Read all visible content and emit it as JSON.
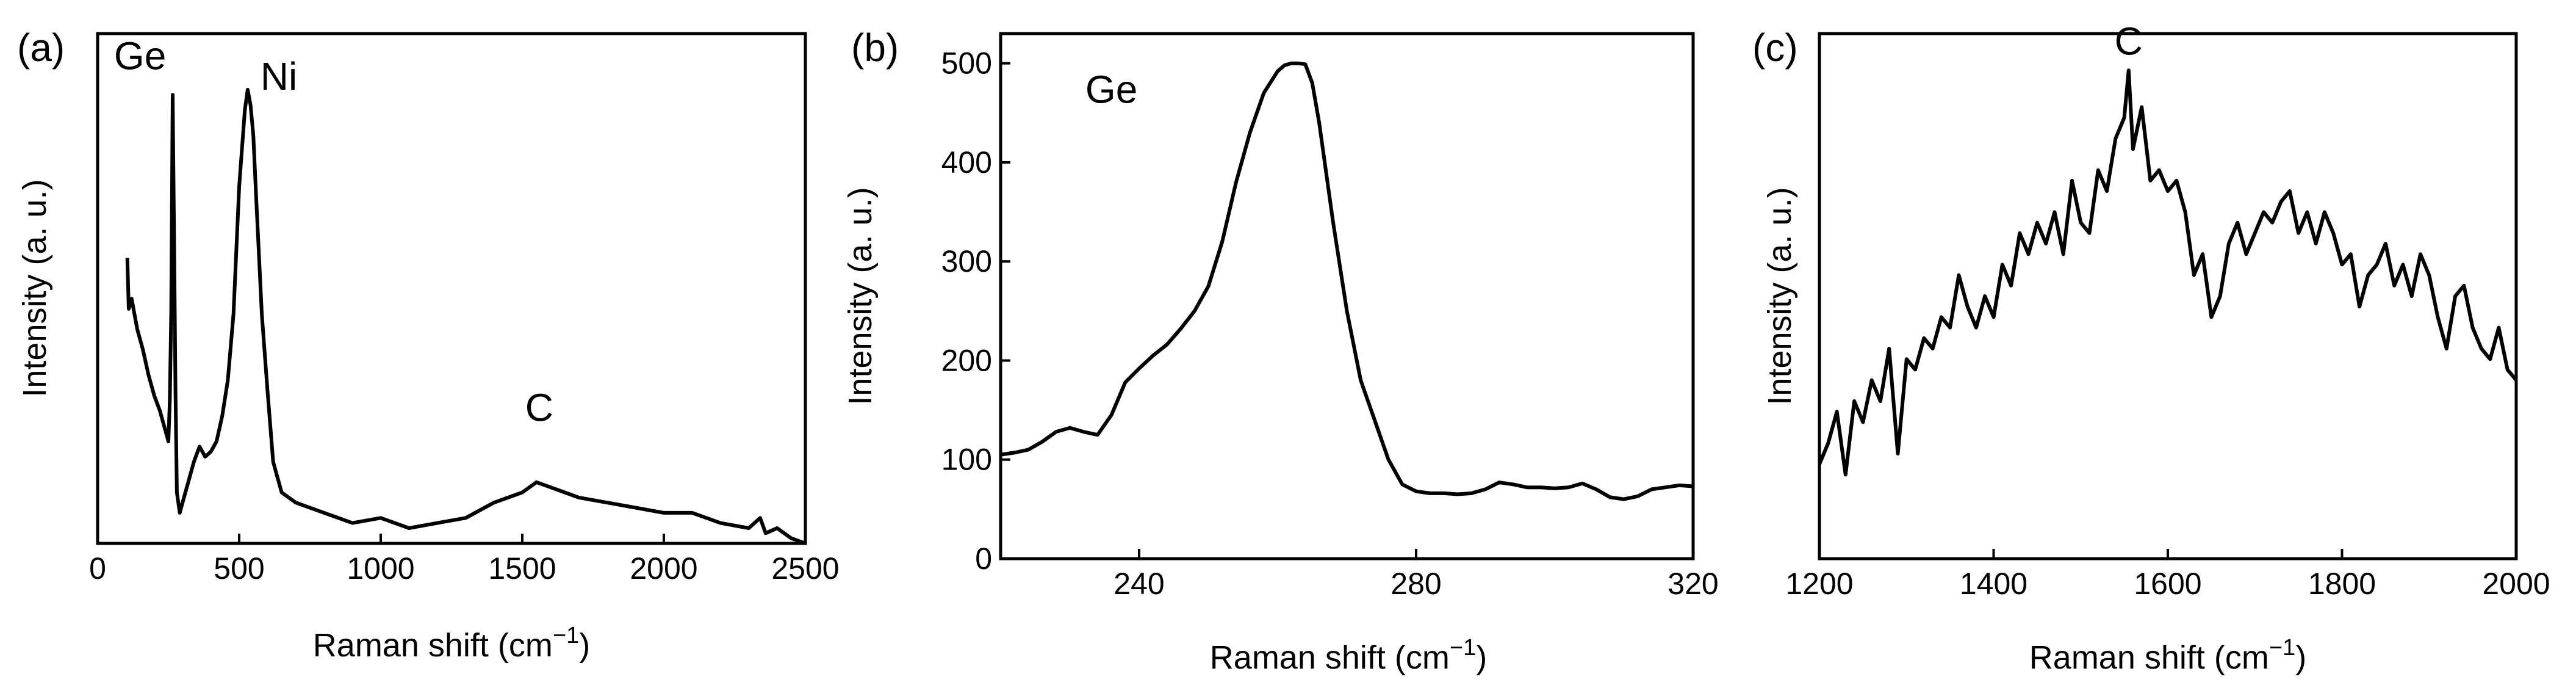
{
  "chart_data": [
    {
      "type": "line",
      "panel_label": "(a)",
      "xlabel": "Raman shift (cm",
      "xlabel_sup": "−1",
      "xlabel_tail": ")",
      "ylabel": "Intensity (a. u.)",
      "xlim": [
        0,
        2500
      ],
      "ylim": [
        0,
        100
      ],
      "x_ticks": [
        "0",
        "500",
        "1000",
        "1500",
        "2000",
        "2500"
      ],
      "y_ticks": [],
      "annotations": [
        {
          "text": "Ge",
          "x": 150,
          "y": 93
        },
        {
          "text": "Ni",
          "x": 640,
          "y": 89
        },
        {
          "text": "C",
          "x": 1560,
          "y": 24
        }
      ],
      "series": [
        {
          "x": [
            105,
            110,
            120,
            140,
            160,
            180,
            200,
            220,
            240,
            250,
            255,
            260,
            265,
            270,
            275,
            280,
            290,
            300,
            320,
            340,
            360,
            380,
            400,
            420,
            440,
            460,
            480,
            500,
            520,
            530,
            540,
            550,
            560,
            580,
            600,
            620,
            650,
            700,
            800,
            900,
            1000,
            1100,
            1200,
            1300,
            1400,
            1500,
            1550,
            1600,
            1650,
            1700,
            1800,
            1900,
            2000,
            2100,
            2200,
            2300,
            2340,
            2360,
            2400,
            2450,
            2500
          ],
          "y": [
            56,
            46,
            48,
            42,
            38,
            33,
            29,
            26,
            22,
            20,
            28,
            45,
            88,
            60,
            30,
            10,
            6,
            8,
            12,
            16,
            19,
            17,
            18,
            20,
            25,
            32,
            45,
            70,
            85,
            89,
            86,
            80,
            68,
            45,
            30,
            16,
            10,
            8,
            6,
            4,
            5,
            3,
            4,
            5,
            8,
            10,
            12,
            11,
            10,
            9,
            8,
            7,
            6,
            6,
            4,
            3,
            5,
            2,
            3,
            1,
            0
          ]
        }
      ]
    },
    {
      "type": "line",
      "panel_label": "(b)",
      "xlabel": "Raman shift (cm",
      "xlabel_sup": "−1",
      "xlabel_tail": ")",
      "ylabel": "Intensity (a. u.)",
      "xlim": [
        220,
        320
      ],
      "ylim": [
        0,
        530
      ],
      "x_ticks": [
        "240",
        "280",
        "320"
      ],
      "y_ticks": [
        "0",
        "100",
        "200",
        "300",
        "400",
        "500"
      ],
      "annotations": [
        {
          "text": "Ge",
          "x": 236,
          "y": 460
        }
      ],
      "series": [
        {
          "x": [
            220,
            222,
            224,
            226,
            228,
            230,
            232,
            234,
            236,
            238,
            240,
            242,
            244,
            246,
            248,
            250,
            252,
            254,
            256,
            258,
            260,
            261,
            262,
            263,
            264,
            265,
            266,
            268,
            270,
            272,
            274,
            276,
            278,
            280,
            282,
            284,
            286,
            288,
            290,
            292,
            294,
            296,
            298,
            300,
            302,
            304,
            306,
            308,
            310,
            312,
            314,
            316,
            318,
            320
          ],
          "y": [
            105,
            107,
            110,
            118,
            128,
            132,
            128,
            125,
            145,
            178,
            192,
            205,
            216,
            232,
            250,
            275,
            320,
            380,
            430,
            470,
            492,
            498,
            500,
            500,
            499,
            480,
            440,
            340,
            250,
            180,
            140,
            100,
            75,
            68,
            66,
            66,
            65,
            66,
            70,
            77,
            75,
            72,
            72,
            71,
            72,
            76,
            70,
            62,
            60,
            63,
            70,
            72,
            74,
            73
          ]
        }
      ]
    },
    {
      "type": "line",
      "panel_label": "(c)",
      "xlabel": "Raman shift (cm",
      "xlabel_sup": "−1",
      "xlabel_tail": ")",
      "ylabel": "Intensity (a. u.)",
      "xlim": [
        1200,
        2000
      ],
      "ylim": [
        0,
        100
      ],
      "x_ticks": [
        "1200",
        "1400",
        "1600",
        "1800",
        "2000"
      ],
      "y_ticks": [],
      "annotations": [
        {
          "text": "C",
          "x": 1555,
          "y": 96
        }
      ],
      "series": [
        {
          "x": [
            1200,
            1210,
            1220,
            1230,
            1240,
            1250,
            1260,
            1270,
            1280,
            1290,
            1300,
            1310,
            1320,
            1330,
            1340,
            1350,
            1360,
            1370,
            1380,
            1390,
            1400,
            1410,
            1420,
            1430,
            1440,
            1450,
            1460,
            1470,
            1480,
            1490,
            1500,
            1510,
            1520,
            1530,
            1540,
            1550,
            1555,
            1560,
            1570,
            1580,
            1590,
            1600,
            1610,
            1620,
            1630,
            1640,
            1650,
            1660,
            1670,
            1680,
            1690,
            1700,
            1710,
            1720,
            1730,
            1740,
            1750,
            1760,
            1770,
            1780,
            1790,
            1800,
            1810,
            1820,
            1830,
            1840,
            1850,
            1860,
            1870,
            1880,
            1890,
            1900,
            1910,
            1920,
            1930,
            1940,
            1950,
            1960,
            1970,
            1980,
            1990,
            2000
          ],
          "y": [
            18,
            22,
            28,
            16,
            30,
            26,
            34,
            30,
            40,
            20,
            38,
            36,
            42,
            40,
            46,
            44,
            54,
            48,
            44,
            50,
            46,
            56,
            52,
            62,
            58,
            64,
            60,
            66,
            58,
            72,
            64,
            62,
            74,
            70,
            80,
            84,
            93,
            78,
            86,
            72,
            74,
            70,
            72,
            66,
            54,
            58,
            46,
            50,
            60,
            64,
            58,
            62,
            66,
            64,
            68,
            70,
            62,
            66,
            60,
            66,
            62,
            56,
            58,
            48,
            54,
            56,
            60,
            52,
            56,
            50,
            58,
            54,
            46,
            40,
            50,
            52,
            44,
            40,
            38,
            44,
            36,
            34
          ]
        }
      ]
    }
  ]
}
